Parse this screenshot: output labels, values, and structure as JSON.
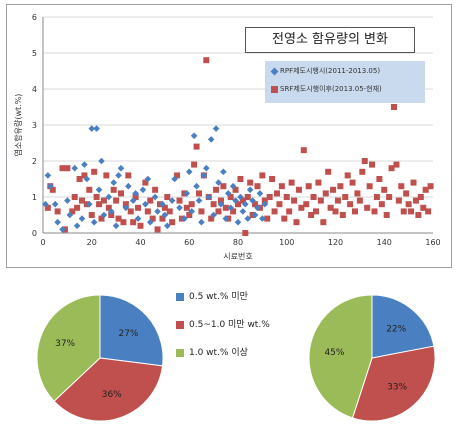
{
  "colors": {
    "blue": "#4a7fc1",
    "red": "#c0504d",
    "green": "#9bbb59",
    "grid": "#d9d9d9"
  },
  "scatter": {
    "title": "전영소 함유량의 변화",
    "ylabel": "염소함유량(wt.%)",
    "xlabel": "시료번호",
    "legend": [
      {
        "name": "RPF제도시행시(2011-2013.05)",
        "marker": "diamond",
        "color": "#4a7fc1"
      },
      {
        "name": "SRF제도시행이후(2013.05-현재)",
        "marker": "square",
        "color": "#c0504d"
      }
    ]
  },
  "pie_legend": [
    {
      "label": "0.5 wt.% 미만",
      "color": "#4a7fc1"
    },
    {
      "label": "0.5~1.0 미만 wt.%",
      "color": "#c0504d"
    },
    {
      "label": "1.0 wt.% 이상",
      "color": "#9bbb59"
    }
  ],
  "chart_data": [
    {
      "type": "scatter",
      "title": "전영소 함유량의 변화",
      "xlabel": "시료번호",
      "ylabel": "염소함유량(wt.%)",
      "xlim": [
        0,
        160
      ],
      "ylim": [
        0,
        6
      ],
      "xticks": [
        0,
        20,
        40,
        60,
        80,
        100,
        120,
        140,
        160
      ],
      "yticks": [
        0,
        1,
        2,
        3,
        4,
        5,
        6
      ],
      "legend_position": "top-right",
      "series": [
        {
          "name": "RPF제도시행시(2011-2013.05)",
          "color": "#4a7fc1",
          "marker": "diamond",
          "points": [
            [
              1,
              0.8
            ],
            [
              2,
              1.6
            ],
            [
              3,
              1.3
            ],
            [
              5,
              0.8
            ],
            [
              6,
              0.3
            ],
            [
              8,
              0.1
            ],
            [
              10,
              0.9
            ],
            [
              11,
              0.5
            ],
            [
              13,
              1.8
            ],
            [
              14,
              0.2
            ],
            [
              16,
              0.4
            ],
            [
              17,
              1.9
            ],
            [
              18,
              1.5
            ],
            [
              19,
              0.8
            ],
            [
              20,
              2.9
            ],
            [
              21,
              0.3
            ],
            [
              22,
              2.9
            ],
            [
              23,
              1.2
            ],
            [
              24,
              2.0
            ],
            [
              25,
              0.5
            ],
            [
              27,
              1.0
            ],
            [
              28,
              0.6
            ],
            [
              29,
              1.4
            ],
            [
              30,
              0.2
            ],
            [
              31,
              1.6
            ],
            [
              32,
              1.8
            ],
            [
              34,
              0.7
            ],
            [
              35,
              1.3
            ],
            [
              37,
              0.9
            ],
            [
              38,
              1.1
            ],
            [
              39,
              0.4
            ],
            [
              41,
              1.2
            ],
            [
              42,
              0.8
            ],
            [
              43,
              1.5
            ],
            [
              44,
              0.3
            ],
            [
              46,
              1.0
            ],
            [
              47,
              0.6
            ],
            [
              49,
              0.8
            ],
            [
              50,
              0.5
            ],
            [
              51,
              0.2
            ],
            [
              53,
              0.9
            ],
            [
              54,
              1.5
            ],
            [
              56,
              0.7
            ],
            [
              58,
              0.4
            ],
            [
              59,
              1.1
            ],
            [
              60,
              1.7
            ],
            [
              61,
              0.6
            ],
            [
              62,
              2.7
            ],
            [
              63,
              1.3
            ],
            [
              64,
              0.9
            ],
            [
              65,
              0.3
            ],
            [
              66,
              1.6
            ],
            [
              67,
              1.8
            ],
            [
              68,
              1.0
            ],
            [
              69,
              2.6
            ],
            [
              70,
              0.5
            ],
            [
              71,
              2.9
            ],
            [
              72,
              1.4
            ],
            [
              73,
              0.8
            ],
            [
              74,
              1.7
            ],
            [
              75,
              0.4
            ],
            [
              76,
              1.1
            ],
            [
              77,
              0.7
            ],
            [
              78,
              1.3
            ],
            [
              79,
              0.9
            ],
            [
              80,
              0.3
            ],
            [
              81,
              1.0
            ],
            [
              82,
              0.6
            ],
            [
              83,
              0.8
            ],
            [
              84,
              0.4
            ],
            [
              85,
              1.2
            ],
            [
              86,
              0.9
            ],
            [
              87,
              0.5
            ],
            [
              88,
              0.7
            ],
            [
              89,
              1.1
            ],
            [
              90,
              0.4
            ],
            [
              91,
              0.8
            ]
          ]
        },
        {
          "name": "SRF제도시행이후(2013.05-현재)",
          "color": "#c0504d",
          "marker": "square",
          "points": [
            [
              2,
              0.7
            ],
            [
              3,
              1.3
            ],
            [
              4,
              1.2
            ],
            [
              6,
              0.6
            ],
            [
              8,
              1.8
            ],
            [
              9,
              0.1
            ],
            [
              10,
              1.8
            ],
            [
              12,
              0.6
            ],
            [
              13,
              1.0
            ],
            [
              14,
              0.7
            ],
            [
              15,
              1.5
            ],
            [
              16,
              0.9
            ],
            [
              17,
              1.6
            ],
            [
              18,
              0.8
            ],
            [
              19,
              1.2
            ],
            [
              20,
              0.5
            ],
            [
              21,
              1.7
            ],
            [
              22,
              1.0
            ],
            [
              23,
              0.8
            ],
            [
              24,
              0.4
            ],
            [
              25,
              0.9
            ],
            [
              26,
              1.6
            ],
            [
              27,
              0.7
            ],
            [
              28,
              0.5
            ],
            [
              29,
              1.2
            ],
            [
              30,
              0.9
            ],
            [
              31,
              0.4
            ],
            [
              32,
              1.1
            ],
            [
              33,
              0.3
            ],
            [
              34,
              0.8
            ],
            [
              35,
              1.6
            ],
            [
              36,
              0.6
            ],
            [
              37,
              0.3
            ],
            [
              38,
              1.0
            ],
            [
              39,
              0.7
            ],
            [
              40,
              0.2
            ],
            [
              42,
              1.4
            ],
            [
              43,
              0.6
            ],
            [
              44,
              0.9
            ],
            [
              45,
              0.4
            ],
            [
              46,
              1.2
            ],
            [
              47,
              0.1
            ],
            [
              48,
              0.8
            ],
            [
              49,
              0.4
            ],
            [
              50,
              0.7
            ],
            [
              51,
              1.0
            ],
            [
              52,
              0.6
            ],
            [
              53,
              0.3
            ],
            [
              55,
              1.6
            ],
            [
              56,
              0.9
            ],
            [
              57,
              0.4
            ],
            [
              58,
              1.1
            ],
            [
              59,
              0.7
            ],
            [
              60,
              0.5
            ],
            [
              61,
              0.8
            ],
            [
              62,
              1.9
            ],
            [
              63,
              2.4
            ],
            [
              64,
              1.1
            ],
            [
              65,
              0.6
            ],
            [
              66,
              1.6
            ],
            [
              67,
              4.8
            ],
            [
              68,
              1.0
            ],
            [
              69,
              0.4
            ],
            [
              70,
              0.8
            ],
            [
              71,
              1.2
            ],
            [
              72,
              0.6
            ],
            [
              73,
              0.9
            ],
            [
              74,
              1.3
            ],
            [
              75,
              0.7
            ],
            [
              76,
              0.4
            ],
            [
              77,
              1.0
            ],
            [
              78,
              0.6
            ],
            [
              79,
              1.2
            ],
            [
              80,
              0.8
            ],
            [
              81,
              1.5
            ],
            [
              82,
              0.9
            ],
            [
              83,
              0.0
            ],
            [
              84,
              1.0
            ],
            [
              85,
              1.4
            ],
            [
              86,
              0.5
            ],
            [
              87,
              0.8
            ],
            [
              88,
              1.3
            ],
            [
              89,
              0.7
            ],
            [
              90,
              1.6
            ],
            [
              91,
              0.9
            ],
            [
              92,
              0.4
            ],
            [
              93,
              1.0
            ],
            [
              94,
              1.5
            ],
            [
              95,
              0.6
            ],
            [
              96,
              1.1
            ],
            [
              97,
              0.8
            ],
            [
              98,
              1.3
            ],
            [
              99,
              0.4
            ],
            [
              100,
              1.0
            ],
            [
              101,
              0.6
            ],
            [
              102,
              1.4
            ],
            [
              103,
              0.9
            ],
            [
              104,
              0.3
            ],
            [
              105,
              1.2
            ],
            [
              106,
              0.7
            ],
            [
              107,
              2.3
            ],
            [
              108,
              0.8
            ],
            [
              109,
              1.3
            ],
            [
              110,
              0.5
            ],
            [
              111,
              1.0
            ],
            [
              112,
              0.6
            ],
            [
              113,
              1.4
            ],
            [
              114,
              0.9
            ],
            [
              115,
              0.3
            ],
            [
              116,
              1.1
            ],
            [
              117,
              1.7
            ],
            [
              118,
              0.7
            ],
            [
              119,
              1.2
            ],
            [
              120,
              0.6
            ],
            [
              121,
              0.9
            ],
            [
              122,
              1.3
            ],
            [
              123,
              0.5
            ],
            [
              124,
              1.0
            ],
            [
              125,
              1.6
            ],
            [
              126,
              0.8
            ],
            [
              127,
              1.4
            ],
            [
              128,
              0.6
            ],
            [
              129,
              1.1
            ],
            [
              130,
              0.9
            ],
            [
              131,
              1.7
            ],
            [
              132,
              2.0
            ],
            [
              133,
              0.7
            ],
            [
              134,
              1.3
            ],
            [
              135,
              1.9
            ],
            [
              136,
              0.6
            ],
            [
              137,
              1.0
            ],
            [
              138,
              1.5
            ],
            [
              139,
              0.8
            ],
            [
              140,
              1.2
            ],
            [
              141,
              0.5
            ],
            [
              142,
              1.0
            ],
            [
              143,
              1.8
            ],
            [
              144,
              3.5
            ],
            [
              145,
              1.9
            ],
            [
              146,
              0.9
            ],
            [
              147,
              1.3
            ],
            [
              148,
              0.6
            ],
            [
              149,
              1.1
            ],
            [
              150,
              0.8
            ],
            [
              151,
              0.6
            ],
            [
              152,
              1.4
            ],
            [
              153,
              0.9
            ],
            [
              154,
              0.5
            ],
            [
              155,
              1.0
            ],
            [
              156,
              0.7
            ],
            [
              157,
              1.2
            ],
            [
              158,
              0.6
            ],
            [
              159,
              1.3
            ]
          ]
        }
      ]
    },
    {
      "type": "pie",
      "labels": [
        "0.5 wt.% 미만",
        "0.5~1.0 미만 wt.%",
        "1.0 wt.% 이상"
      ],
      "values": [
        27,
        36,
        37
      ],
      "value_labels": [
        "27%",
        "36%",
        "37%"
      ],
      "colors": [
        "#4a7fc1",
        "#c0504d",
        "#9bbb59"
      ]
    },
    {
      "type": "pie",
      "labels": [
        "0.5 wt.% 미만",
        "0.5~1.0 미만 wt.%",
        "1.0 wt.% 이상"
      ],
      "values": [
        22,
        33,
        45
      ],
      "value_labels": [
        "22%",
        "33%",
        "45%"
      ],
      "colors": [
        "#4a7fc1",
        "#c0504d",
        "#9bbb59"
      ]
    }
  ]
}
